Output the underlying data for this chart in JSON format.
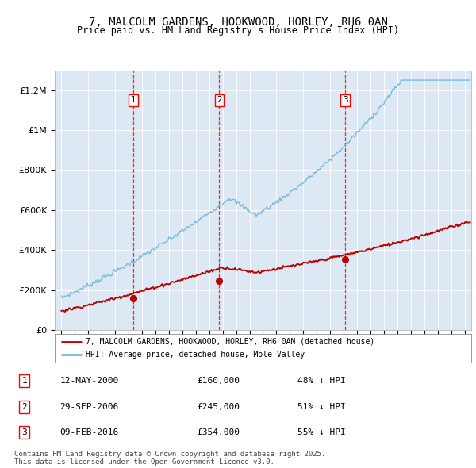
{
  "title": "7, MALCOLM GARDENS, HOOKWOOD, HORLEY, RH6 0AN",
  "subtitle": "Price paid vs. HM Land Registry's House Price Index (HPI)",
  "background_color": "#dce9f5",
  "plot_bg_color": "#dce9f5",
  "red_line_color": "#bb0000",
  "blue_line_color": "#7ab8d9",
  "sale_points": [
    {
      "date_num": 2000.37,
      "value": 160000,
      "label": "1"
    },
    {
      "date_num": 2006.75,
      "value": 245000,
      "label": "2"
    },
    {
      "date_num": 2016.11,
      "value": 354000,
      "label": "3"
    }
  ],
  "sale_labels": [
    {
      "num": "1",
      "date": "12-MAY-2000",
      "price": "£160,000",
      "pct": "48% ↓ HPI"
    },
    {
      "num": "2",
      "date": "29-SEP-2006",
      "price": "£245,000",
      "pct": "51% ↓ HPI"
    },
    {
      "num": "3",
      "date": "09-FEB-2016",
      "price": "£354,000",
      "pct": "55% ↓ HPI"
    }
  ],
  "legend_red": "7, MALCOLM GARDENS, HOOKWOOD, HORLEY, RH6 0AN (detached house)",
  "legend_blue": "HPI: Average price, detached house, Mole Valley",
  "footer": "Contains HM Land Registry data © Crown copyright and database right 2025.\nThis data is licensed under the Open Government Licence v3.0.",
  "ylim": [
    0,
    1300000
  ],
  "xlim_start": 1994.5,
  "xlim_end": 2025.5,
  "yticks": [
    0,
    200000,
    400000,
    600000,
    800000,
    1000000,
    1200000
  ],
  "ylabels": [
    "£0",
    "£200K",
    "£400K",
    "£600K",
    "£800K",
    "£1M",
    "£1.2M"
  ]
}
